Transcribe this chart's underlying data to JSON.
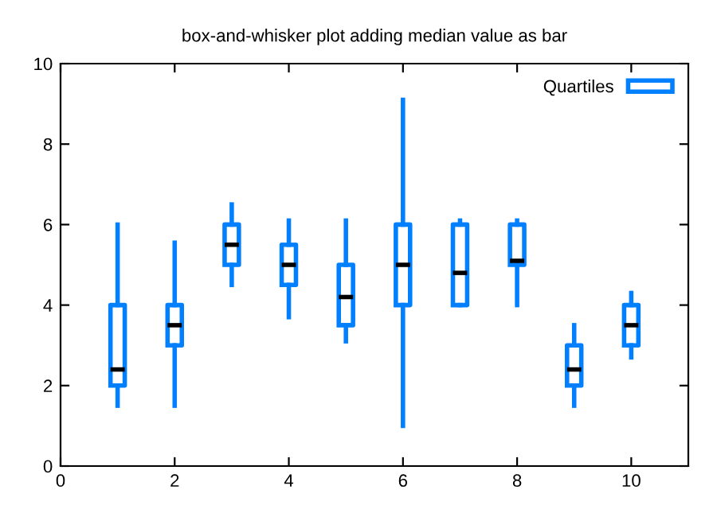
{
  "chart_data": {
    "type": "box",
    "title": "box-and-whisker plot adding median value as bar",
    "x": [
      1,
      2,
      3,
      4,
      5,
      6,
      7,
      8,
      9,
      10
    ],
    "series": [
      {
        "name": "Quartiles",
        "color": "#0080ff",
        "boxes": [
          {
            "low": 1.5,
            "q1": 2.0,
            "median": 2.4,
            "q3": 4.0,
            "high": 6.0
          },
          {
            "low": 1.5,
            "q1": 3.0,
            "median": 3.5,
            "q3": 4.0,
            "high": 5.55
          },
          {
            "low": 4.5,
            "q1": 5.0,
            "median": 5.5,
            "q3": 6.0,
            "high": 6.5
          },
          {
            "low": 3.7,
            "q1": 4.5,
            "median": 5.0,
            "q3": 5.5,
            "high": 6.1
          },
          {
            "low": 3.1,
            "q1": 3.5,
            "median": 4.2,
            "q3": 5.0,
            "high": 6.1
          },
          {
            "low": 1.0,
            "q1": 4.0,
            "median": 5.0,
            "q3": 6.0,
            "high": 9.1
          },
          {
            "low": 4.0,
            "q1": 4.0,
            "median": 4.8,
            "q3": 6.0,
            "high": 6.1
          },
          {
            "low": 4.0,
            "q1": 5.0,
            "median": 5.1,
            "q3": 6.0,
            "high": 6.1
          },
          {
            "low": 1.5,
            "q1": 2.0,
            "median": 2.4,
            "q3": 3.0,
            "high": 3.5
          },
          {
            "low": 2.7,
            "q1": 3.0,
            "median": 3.5,
            "q3": 4.0,
            "high": 4.3
          }
        ]
      }
    ],
    "xlim": [
      0,
      11
    ],
    "ylim": [
      0,
      10
    ],
    "xticks": [
      0,
      2,
      4,
      6,
      8,
      10
    ],
    "yticks": [
      0,
      2,
      4,
      6,
      8,
      10
    ],
    "grid": false,
    "legend": "top right"
  }
}
